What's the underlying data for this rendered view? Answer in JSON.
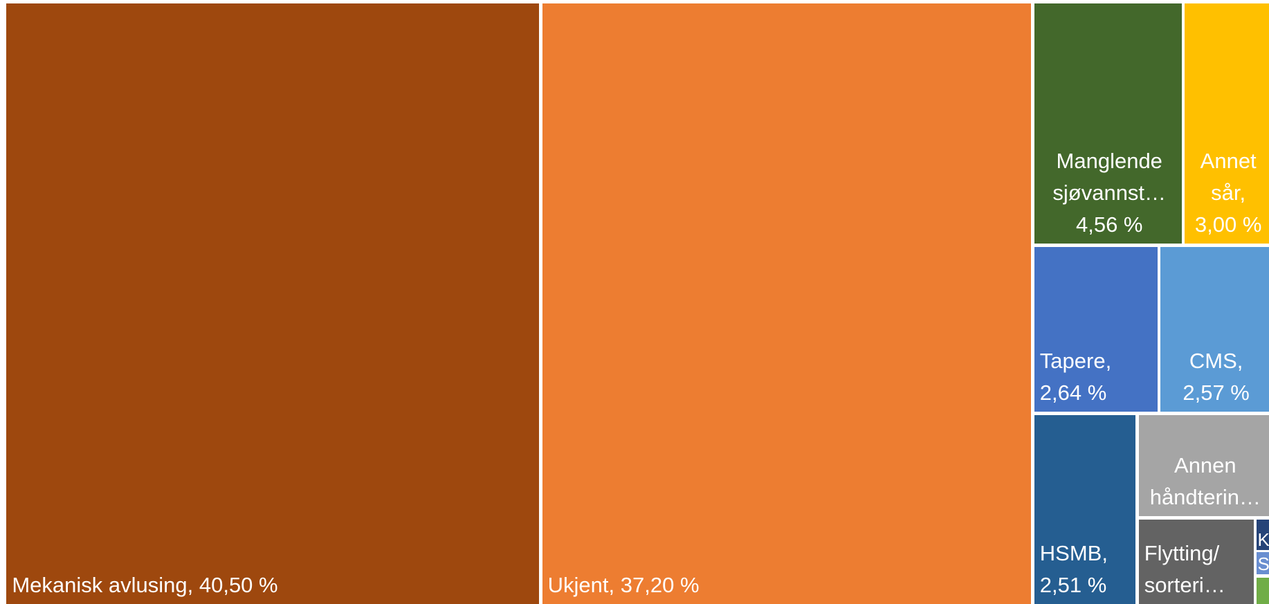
{
  "chart_data": {
    "type": "treemap",
    "labels": [
      "Mekanisk avlusing, 40,50 %",
      "Ukjent, 37,20 %",
      "Manglende sjøvannst… 4,56 %",
      "Annet sår, 3,00 %",
      "Tapere, 2,64 %",
      "CMS, 2,57 %",
      "HSMB, 2,51 %",
      "Annen håndterin…",
      "Flytting/ sorteri…",
      "K",
      "S",
      null
    ],
    "values": [
      40.5,
      37.2,
      4.56,
      3.0,
      2.64,
      2.57,
      2.51,
      1.9,
      1.25,
      0.4,
      0.3,
      0.2
    ],
    "colors": [
      "#9e480e",
      "#ed7d31",
      "#43682b",
      "#ffc000",
      "#4472c4",
      "#5b9bd5",
      "#255e91",
      "#a5a5a5",
      "#636363",
      "#264478",
      "#698ed0",
      "#70ad47"
    ]
  }
}
